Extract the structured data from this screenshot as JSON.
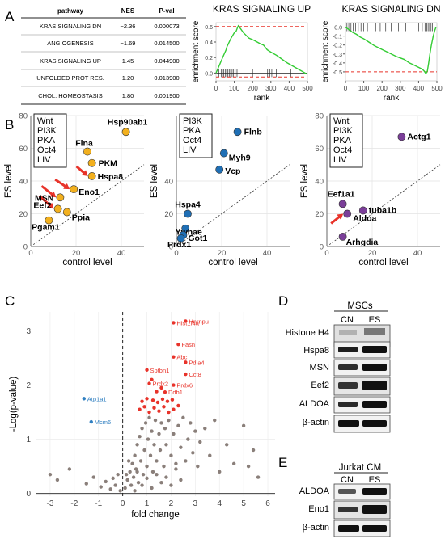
{
  "colors": {
    "gsea_curve": "#33cc33",
    "gsea_threshold": "#e8332a",
    "orange": "#f2b01e",
    "blue": "#1f6fb5",
    "purple": "#7b3f99",
    "volcano_gray": "#8a7f7a",
    "volcano_red": "#e8332a",
    "volcano_blue": "#2f7fc1",
    "arrow_red": "#e8332a"
  },
  "panel_labels": {
    "a": "A",
    "b": "B",
    "c": "C",
    "d": "D",
    "e": "E"
  },
  "table": {
    "headers": [
      "pathway",
      "NES",
      "P-val"
    ],
    "rows": [
      [
        "KRAS SIGNALING DN",
        "−2.36",
        "0.000073"
      ],
      [
        "ANGIOGENESIS",
        "−1.69",
        "0.014500"
      ],
      [
        "KRAS SIGNALING UP",
        "1.45",
        "0.044900"
      ],
      [
        "UNFOLDED PROT RES.",
        "1.20",
        "0.013900"
      ],
      [
        "CHOL. HOMEOSTASIS",
        "1.80",
        "0.001900"
      ]
    ]
  },
  "chart_data": [
    {
      "id": "gsea_up",
      "type": "line",
      "title": "KRAS SIGNALING UP",
      "xlabel": "rank",
      "ylabel": "enrichment score",
      "xlim": [
        0,
        500
      ],
      "ylim": [
        -0.1,
        0.65
      ],
      "xticks": [
        0,
        100,
        200,
        300,
        400,
        500
      ],
      "yticks": [
        0.0,
        0.2,
        0.4,
        0.6
      ],
      "ytick_labels": [
        "0.0",
        "0.2",
        "0.4",
        "0.6"
      ],
      "threshold_lines": [
        0.6,
        -0.05
      ],
      "x": [
        0,
        40,
        55,
        60,
        72,
        80,
        90,
        100,
        110,
        118,
        122,
        135,
        150,
        180,
        210,
        240,
        260,
        280,
        300,
        330,
        360,
        390,
        420,
        450,
        480,
        495
      ],
      "y": [
        0.0,
        0.22,
        0.3,
        0.34,
        0.4,
        0.44,
        0.48,
        0.52,
        0.54,
        0.59,
        0.61,
        0.57,
        0.52,
        0.45,
        0.42,
        0.38,
        0.36,
        0.3,
        0.27,
        0.23,
        0.18,
        0.13,
        0.09,
        0.05,
        0.01,
        -0.01
      ],
      "rug": [
        15,
        28,
        35,
        42,
        50,
        58,
        65,
        72,
        80,
        88,
        96,
        105,
        115,
        200,
        282,
        295,
        305,
        330,
        410
      ]
    },
    {
      "id": "gsea_dn",
      "type": "line",
      "title": "KRAS SIGNALING DN",
      "xlabel": "rank",
      "ylabel": "enrichment score",
      "xlim": [
        0,
        500
      ],
      "ylim": [
        -0.6,
        0.05
      ],
      "xticks": [
        0,
        100,
        200,
        300,
        400,
        500
      ],
      "yticks": [
        0.0,
        -0.1,
        -0.2,
        -0.3,
        -0.4,
        -0.5
      ],
      "ytick_labels": [
        "0.0",
        "-0.1",
        "-0.2",
        "-0.3",
        "-0.4",
        "-0.5"
      ],
      "threshold_lines": [
        -0.5
      ],
      "x": [
        0,
        20,
        40,
        60,
        80,
        100,
        130,
        160,
        200,
        240,
        280,
        320,
        350,
        380,
        400,
        420,
        430,
        440,
        448,
        455,
        462,
        470,
        480,
        488,
        495
      ],
      "y": [
        0.0,
        -0.03,
        -0.06,
        -0.08,
        -0.11,
        -0.13,
        -0.17,
        -0.21,
        -0.25,
        -0.29,
        -0.33,
        -0.36,
        -0.4,
        -0.43,
        -0.45,
        -0.47,
        -0.49,
        -0.52,
        -0.49,
        -0.4,
        -0.3,
        -0.2,
        -0.1,
        -0.04,
        0.0
      ],
      "rug": [
        8,
        18,
        30,
        42,
        55,
        70,
        85,
        100,
        120,
        140,
        165,
        190,
        220,
        250,
        290,
        330,
        370,
        400,
        420,
        435,
        445,
        452,
        460,
        468,
        475
      ]
    },
    {
      "id": "scatter_orange",
      "type": "scatter",
      "xlabel": "control level",
      "ylabel": "ES level",
      "xlim": [
        0,
        50
      ],
      "ylim": [
        0,
        80
      ],
      "xticks": [
        0,
        20,
        40
      ],
      "yticks": [
        0,
        20,
        40,
        60,
        80
      ],
      "identity_line": true,
      "legend_box": [
        "Wnt",
        "PI3K",
        "PKA",
        "Oct4",
        "LIV"
      ],
      "points": [
        {
          "label": "Hsp90ab1",
          "x": 42,
          "y": 70
        },
        {
          "label": "Flna",
          "x": 25,
          "y": 58
        },
        {
          "label": "PKM",
          "x": 27,
          "y": 51
        },
        {
          "label": "Hspa8",
          "x": 27,
          "y": 43
        },
        {
          "label": "Eno1",
          "x": 19,
          "y": 35
        },
        {
          "label": "MSN",
          "x": 13,
          "y": 30
        },
        {
          "label": "Eef2",
          "x": 12,
          "y": 23
        },
        {
          "label": "Ppia",
          "x": 16,
          "y": 21
        },
        {
          "label": "Pgam1",
          "x": 8,
          "y": 16
        }
      ],
      "arrows_to": [
        "Hspa8",
        "Eno1",
        "MSN",
        "Eef2"
      ]
    },
    {
      "id": "scatter_blue",
      "type": "scatter",
      "xlabel": "control level",
      "ylabel": "ES level",
      "xlim": [
        0,
        50
      ],
      "ylim": [
        0,
        80
      ],
      "xticks": [
        0,
        20,
        40
      ],
      "yticks": [
        0,
        20,
        40
      ],
      "identity_line": true,
      "legend_box": [
        "PI3K",
        "PKA",
        "Oct4",
        "LIV"
      ],
      "points": [
        {
          "label": "Flnb",
          "x": 27,
          "y": 70
        },
        {
          "label": "Myh9",
          "x": 21,
          "y": 57
        },
        {
          "label": "Vcp",
          "x": 19,
          "y": 47
        },
        {
          "label": "Hspa4",
          "x": 5,
          "y": 20
        },
        {
          "label": "Ywhae",
          "x": 4,
          "y": 11
        },
        {
          "label": "Got1",
          "x": 3,
          "y": 7
        },
        {
          "label": "Prdx1",
          "x": 2,
          "y": 5
        }
      ],
      "arrows_to": []
    },
    {
      "id": "scatter_purple",
      "type": "scatter",
      "xlabel": "control level",
      "ylabel": "ES level",
      "xlim": [
        0,
        50
      ],
      "ylim": [
        0,
        80
      ],
      "xticks": [
        0,
        20,
        40
      ],
      "yticks": [
        0,
        20,
        40,
        60,
        80
      ],
      "identity_line": true,
      "legend_box": [
        "Wnt",
        "PI3K",
        "PKA",
        "Oct4",
        "LIV"
      ],
      "points": [
        {
          "label": "Actg1",
          "x": 33,
          "y": 67
        },
        {
          "label": "Eef1a1",
          "x": 7,
          "y": 26
        },
        {
          "label": "tuba1b",
          "x": 16,
          "y": 22
        },
        {
          "label": "Aldoa",
          "x": 9,
          "y": 20
        },
        {
          "label": "Arhgdia",
          "x": 7,
          "y": 6
        }
      ],
      "arrows_to": [
        "Aldoa"
      ]
    },
    {
      "id": "volcano",
      "type": "scatter",
      "xlabel": "fold change",
      "ylabel": "-Log(p-value)",
      "xlim": [
        -3.6,
        6.3
      ],
      "ylim": [
        -0.05,
        3.35
      ],
      "xticks": [
        -3,
        -2,
        -1,
        0,
        1,
        2,
        3,
        4,
        5,
        6
      ],
      "yticks": [
        0,
        1,
        2,
        3
      ],
      "labeled_points": [
        {
          "label": "Hist1f4a",
          "x": 2.1,
          "y": 3.15,
          "group": "red"
        },
        {
          "label": "Hnrnpu",
          "x": 2.6,
          "y": 3.18,
          "group": "red"
        },
        {
          "label": "Fasn",
          "x": 2.3,
          "y": 2.75,
          "group": "red"
        },
        {
          "label": "Abc",
          "x": 2.1,
          "y": 2.52,
          "group": "red"
        },
        {
          "label": "Pdia4",
          "x": 2.6,
          "y": 2.42,
          "group": "red"
        },
        {
          "label": "Sptbn1",
          "x": 1.0,
          "y": 2.28,
          "group": "red"
        },
        {
          "label": "Cct8",
          "x": 2.6,
          "y": 2.2,
          "group": "red"
        },
        {
          "label": "Prdx2",
          "x": 1.1,
          "y": 2.03,
          "group": "red"
        },
        {
          "label": "Prdx6",
          "x": 2.1,
          "y": 2.0,
          "group": "red"
        },
        {
          "label": "Ddb1",
          "x": 1.75,
          "y": 1.87,
          "group": "red"
        },
        {
          "label": "Atp1a1",
          "x": -1.6,
          "y": 1.75,
          "group": "blue"
        },
        {
          "label": "Mcm6",
          "x": -1.3,
          "y": 1.32,
          "group": "blue"
        }
      ],
      "red_points": [
        {
          "x": 0.7,
          "y": 1.55
        },
        {
          "x": 0.9,
          "y": 1.6
        },
        {
          "x": 1.1,
          "y": 1.5
        },
        {
          "x": 1.3,
          "y": 1.58
        },
        {
          "x": 1.5,
          "y": 1.52
        },
        {
          "x": 1.7,
          "y": 1.6
        },
        {
          "x": 1.9,
          "y": 1.5
        },
        {
          "x": 2.1,
          "y": 1.55
        },
        {
          "x": 2.3,
          "y": 1.62
        },
        {
          "x": 0.8,
          "y": 1.7
        },
        {
          "x": 1.0,
          "y": 1.75
        },
        {
          "x": 1.25,
          "y": 1.72
        },
        {
          "x": 1.45,
          "y": 1.68
        },
        {
          "x": 1.65,
          "y": 1.74
        },
        {
          "x": 1.85,
          "y": 1.7
        },
        {
          "x": 2.05,
          "y": 1.73
        },
        {
          "x": 1.4,
          "y": 1.88
        },
        {
          "x": 1.6,
          "y": 1.95
        },
        {
          "x": 1.2,
          "y": 2.1
        }
      ],
      "gray_points": [
        {
          "x": -3.0,
          "y": 0.35
        },
        {
          "x": -2.7,
          "y": 0.25
        },
        {
          "x": -2.2,
          "y": 0.45
        },
        {
          "x": -1.5,
          "y": 0.18
        },
        {
          "x": -1.2,
          "y": 0.3
        },
        {
          "x": -0.9,
          "y": 0.12
        },
        {
          "x": -0.7,
          "y": 0.22
        },
        {
          "x": -0.5,
          "y": 0.08
        },
        {
          "x": -0.3,
          "y": 0.15
        },
        {
          "x": -0.1,
          "y": 0.05
        },
        {
          "x": 0.1,
          "y": 0.1
        },
        {
          "x": 0.2,
          "y": 0.25
        },
        {
          "x": 0.3,
          "y": 0.4
        },
        {
          "x": 0.35,
          "y": 0.15
        },
        {
          "x": 0.4,
          "y": 0.55
        },
        {
          "x": 0.45,
          "y": 0.3
        },
        {
          "x": 0.5,
          "y": 0.7
        },
        {
          "x": 0.55,
          "y": 0.45
        },
        {
          "x": 0.6,
          "y": 0.9
        },
        {
          "x": 0.65,
          "y": 0.2
        },
        {
          "x": 0.7,
          "y": 1.05
        },
        {
          "x": 0.75,
          "y": 0.6
        },
        {
          "x": 0.8,
          "y": 1.2
        },
        {
          "x": 0.85,
          "y": 0.35
        },
        {
          "x": 0.9,
          "y": 0.8
        },
        {
          "x": 0.95,
          "y": 1.3
        },
        {
          "x": 1.0,
          "y": 0.5
        },
        {
          "x": 1.05,
          "y": 1.0
        },
        {
          "x": 1.1,
          "y": 1.4
        },
        {
          "x": 1.15,
          "y": 0.7
        },
        {
          "x": 1.2,
          "y": 1.15
        },
        {
          "x": 1.25,
          "y": 0.4
        },
        {
          "x": 1.3,
          "y": 0.9
        },
        {
          "x": 1.35,
          "y": 1.35
        },
        {
          "x": 1.4,
          "y": 0.6
        },
        {
          "x": 1.5,
          "y": 1.1
        },
        {
          "x": 1.55,
          "y": 0.8
        },
        {
          "x": 1.6,
          "y": 1.3
        },
        {
          "x": 1.7,
          "y": 0.5
        },
        {
          "x": 1.75,
          "y": 1.2
        },
        {
          "x": 1.8,
          "y": 0.9
        },
        {
          "x": 1.9,
          "y": 1.35
        },
        {
          "x": 2.0,
          "y": 0.7
        },
        {
          "x": 2.1,
          "y": 1.1
        },
        {
          "x": 2.2,
          "y": 0.45
        },
        {
          "x": 2.3,
          "y": 1.25
        },
        {
          "x": 2.4,
          "y": 0.85
        },
        {
          "x": 2.5,
          "y": 1.4
        },
        {
          "x": 2.6,
          "y": 0.6
        },
        {
          "x": 2.7,
          "y": 1.0
        },
        {
          "x": 2.8,
          "y": 1.3
        },
        {
          "x": 2.9,
          "y": 0.75
        },
        {
          "x": 3.0,
          "y": 1.15
        },
        {
          "x": 3.1,
          "y": 0.5
        },
        {
          "x": 3.2,
          "y": 0.95
        },
        {
          "x": 3.4,
          "y": 1.2
        },
        {
          "x": 3.6,
          "y": 0.7
        },
        {
          "x": 3.8,
          "y": 1.35
        },
        {
          "x": 4.0,
          "y": 0.4
        },
        {
          "x": 4.3,
          "y": 0.9
        },
        {
          "x": 4.6,
          "y": 0.55
        },
        {
          "x": 5.0,
          "y": 1.25
        },
        {
          "x": 5.4,
          "y": 0.8
        },
        {
          "x": 5.6,
          "y": 0.3
        },
        {
          "x": 5.2,
          "y": 0.5
        },
        {
          "x": 0.5,
          "y": 0.05
        },
        {
          "x": 0.8,
          "y": 0.15
        },
        {
          "x": 1.2,
          "y": 0.1
        },
        {
          "x": 1.6,
          "y": 0.2
        },
        {
          "x": 2.0,
          "y": 0.15
        },
        {
          "x": 2.4,
          "y": 0.25
        },
        {
          "x": 0.6,
          "y": 0.4
        },
        {
          "x": 1.0,
          "y": 0.28
        },
        {
          "x": 1.4,
          "y": 0.35
        },
        {
          "x": 1.8,
          "y": 0.3
        },
        {
          "x": 2.2,
          "y": 0.55
        },
        {
          "x": 0.25,
          "y": 0.6
        },
        {
          "x": 0.15,
          "y": 0.35
        },
        {
          "x": -0.2,
          "y": 0.35
        },
        {
          "x": -0.4,
          "y": 0.28
        }
      ]
    }
  ],
  "blot_d": {
    "title": "MSCs",
    "columns": [
      "CN",
      "ES"
    ],
    "rows": [
      "Histone H4",
      "Hspa8",
      "MSN",
      "Eef2",
      "ALDOA",
      "β-actin"
    ]
  },
  "blot_e": {
    "title": "Jurkat CM",
    "columns": [
      "CN",
      "ES"
    ],
    "rows": [
      "ALDOA",
      "Eno1",
      "β-actin"
    ]
  }
}
